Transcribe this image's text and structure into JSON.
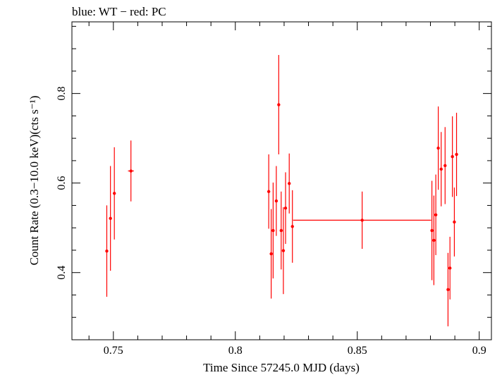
{
  "chart_data": {
    "type": "scatter",
    "title": "blue: WT − red: PC",
    "xlabel": "Time Since 57245.0 MJD (days)",
    "ylabel": "Count Rate (0.3−10.0 keV)(cts s⁻¹)",
    "xlim": [
      0.733,
      0.905
    ],
    "ylim": [
      0.25,
      0.96
    ],
    "xticks": [
      0.75,
      0.8,
      0.85,
      0.9
    ],
    "xtick_labels": [
      "0.75",
      "0.8",
      "0.85",
      "0.9"
    ],
    "yticks": [
      0.4,
      0.6,
      0.8
    ],
    "ytick_labels": [
      "0.4",
      "0.6",
      "0.8"
    ],
    "grid": false,
    "colors": {
      "PC": "#ff0000",
      "WT": "#0000ff"
    },
    "series": [
      {
        "name": "PC",
        "color": "#ff0000",
        "points": [
          {
            "x": 0.7473,
            "y": 0.448,
            "yerr": 0.102,
            "xerr": 0.0003
          },
          {
            "x": 0.7488,
            "y": 0.521,
            "yerr": 0.117,
            "xerr": 0.0003
          },
          {
            "x": 0.7504,
            "y": 0.577,
            "yerr": 0.103,
            "xerr": 0.0003
          },
          {
            "x": 0.7572,
            "y": 0.627,
            "yerr": 0.068,
            "xerr": 0.0012
          },
          {
            "x": 0.8137,
            "y": 0.581,
            "yerr": 0.083,
            "xerr": 0.0003
          },
          {
            "x": 0.8147,
            "y": 0.442,
            "yerr": 0.1,
            "xerr": 0.0003
          },
          {
            "x": 0.8155,
            "y": 0.494,
            "yerr": 0.107,
            "xerr": 0.0003
          },
          {
            "x": 0.8168,
            "y": 0.56,
            "yerr": 0.078,
            "xerr": 0.0003
          },
          {
            "x": 0.8178,
            "y": 0.775,
            "yerr": 0.111,
            "xerr": 0.0003
          },
          {
            "x": 0.8188,
            "y": 0.494,
            "yerr": 0.087,
            "xerr": 0.0003
          },
          {
            "x": 0.8197,
            "y": 0.449,
            "yerr": 0.097,
            "xerr": 0.0003
          },
          {
            "x": 0.8206,
            "y": 0.544,
            "yerr": 0.08,
            "xerr": 0.0003
          },
          {
            "x": 0.8221,
            "y": 0.599,
            "yerr": 0.067,
            "xerr": 0.0003
          },
          {
            "x": 0.8234,
            "y": 0.503,
            "yerr": 0.081,
            "xerr": 0.0003
          },
          {
            "x": 0.852,
            "y": 0.517,
            "yerr": 0.064,
            "xerr": 0.0283
          },
          {
            "x": 0.8806,
            "y": 0.494,
            "yerr": 0.111,
            "xerr": 0.0003
          },
          {
            "x": 0.8814,
            "y": 0.472,
            "yerr": 0.1,
            "xerr": 0.0003
          },
          {
            "x": 0.8822,
            "y": 0.529,
            "yerr": 0.09,
            "xerr": 0.0003
          },
          {
            "x": 0.8832,
            "y": 0.678,
            "yerr": 0.093,
            "xerr": 0.0003
          },
          {
            "x": 0.8844,
            "y": 0.631,
            "yerr": 0.083,
            "xerr": 0.0003
          },
          {
            "x": 0.886,
            "y": 0.639,
            "yerr": 0.086,
            "xerr": 0.0003
          },
          {
            "x": 0.8872,
            "y": 0.362,
            "yerr": 0.082,
            "xerr": 0.0003
          },
          {
            "x": 0.888,
            "y": 0.41,
            "yerr": 0.07,
            "xerr": 0.0003
          },
          {
            "x": 0.889,
            "y": 0.659,
            "yerr": 0.09,
            "xerr": 0.0003
          },
          {
            "x": 0.8898,
            "y": 0.513,
            "yerr": 0.077,
            "xerr": 0.0003
          },
          {
            "x": 0.8907,
            "y": 0.664,
            "yerr": 0.093,
            "xerr": 0.0003
          }
        ]
      }
    ]
  }
}
